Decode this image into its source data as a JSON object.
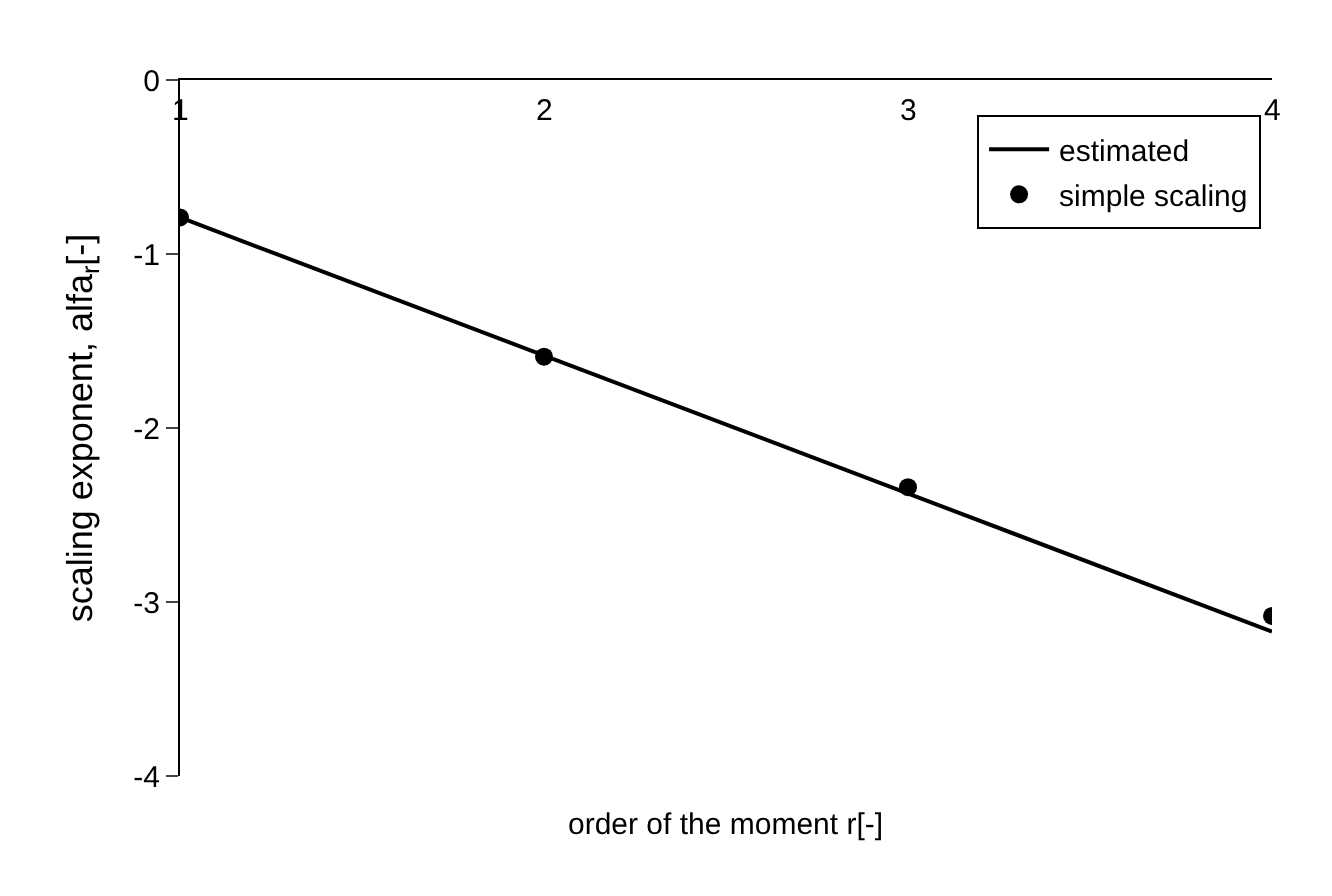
{
  "chart_data": {
    "type": "scatter",
    "xlabel": "order of the moment r[-]",
    "ylabel": "scaling exponent, alfa$_{r}$[-]",
    "xlim": [
      1,
      4
    ],
    "xticks": [
      1,
      2,
      3,
      4
    ],
    "ylim": [
      -4,
      0
    ],
    "yticks": [
      0,
      -1,
      -2,
      -3,
      -4
    ],
    "series": [
      {
        "name": "estimated",
        "type": "line",
        "color": "#000000",
        "x": [
          1,
          4
        ],
        "values": [
          -0.79,
          -3.17
        ],
        "marker": "none",
        "line_style": "solid"
      },
      {
        "name": "simple scaling",
        "color": "#000000",
        "x": [
          1,
          2,
          3,
          4
        ],
        "values": [
          -0.79,
          -1.59,
          -2.34,
          -3.08
        ],
        "marker": "circle"
      }
    ],
    "legend": "top right"
  }
}
